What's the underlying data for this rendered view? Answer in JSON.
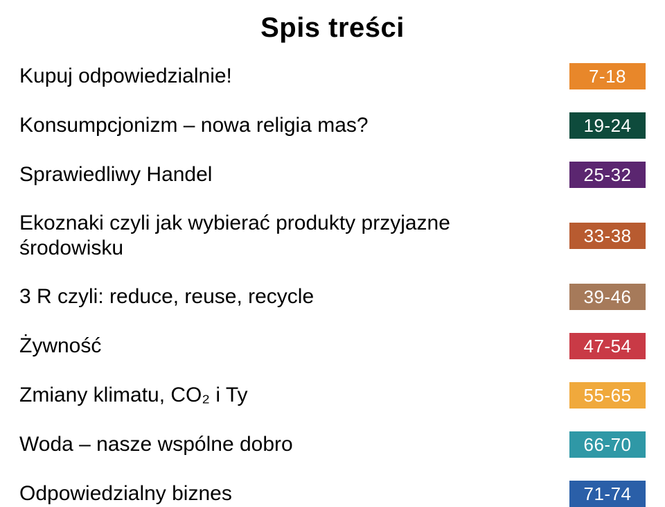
{
  "title": "Spis treści",
  "title_fontsize": 40,
  "title_fontweight": 700,
  "title_color": "#000000",
  "label_fontsize": 30,
  "label_color": "#000000",
  "badge_text_color": "#ffffff",
  "badge_fontsize": 26,
  "badge_width": 110,
  "badge_height": 38,
  "row_gap": 33,
  "background_color": "#ffffff",
  "rows": [
    {
      "label": "Kupuj odpowiedzialnie!",
      "pages": "7-18",
      "badge_color": "#e8872a"
    },
    {
      "label": "Konsumpcjonizm – nowa religia mas?",
      "pages": "19-24",
      "badge_color": "#0e4b3c"
    },
    {
      "label": "Sprawiedliwy Handel",
      "pages": "25-32",
      "badge_color": "#5b2670"
    },
    {
      "label": "Ekoznaki czyli jak wybierać produkty przyjazne środowisku",
      "pages": "33-38",
      "badge_color": "#b85b30"
    },
    {
      "label": "3 R czyli: reduce, reuse, recycle",
      "pages": "39-46",
      "badge_color": "#a67a5a"
    },
    {
      "label": "Żywność",
      "pages": "47-54",
      "badge_color": "#c93a46"
    },
    {
      "label": "Zmiany klimatu, CO₂ i Ty",
      "pages": "55-65",
      "badge_color": "#f0a93c"
    },
    {
      "label": "Woda – nasze wspólne dobro",
      "pages": "66-70",
      "badge_color": "#2f98a6"
    },
    {
      "label": "Odpowiedzialny biznes",
      "pages": "71-74",
      "badge_color": "#2a5fa8"
    }
  ]
}
